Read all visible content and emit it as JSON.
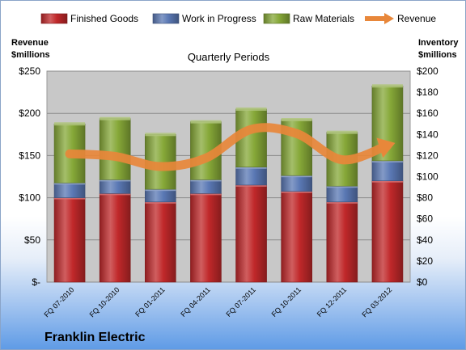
{
  "chart_data": {
    "type": "bar",
    "stacked": true,
    "title": "Quarterly Periods",
    "company": "Franklin Electric",
    "categories": [
      "FQ 07-2010",
      "FQ 10-2010",
      "FQ 01-2011",
      "FQ 04-2011",
      "FQ 07-2011",
      "FQ 10-2011",
      "FQ 12-2011",
      "FQ 03-2012"
    ],
    "y_left": {
      "label_line1": "Revenue",
      "label_line2": "$millions",
      "range": [
        0,
        250
      ],
      "ticks": [
        0,
        50,
        100,
        150,
        200,
        250
      ],
      "tick_labels": [
        "$-",
        "$50",
        "$100",
        "$150",
        "$200",
        "$250"
      ]
    },
    "y_right": {
      "label_line1": "Inventory",
      "label_line2": "$millions",
      "range": [
        0,
        200
      ],
      "ticks": [
        0,
        20,
        40,
        60,
        80,
        100,
        120,
        140,
        160,
        180,
        200
      ],
      "tick_labels": [
        "$0",
        "$20",
        "$40",
        "$60",
        "$80",
        "$100",
        "$120",
        "$140",
        "$160",
        "$180",
        "$200"
      ]
    },
    "series": [
      {
        "name": "Finished Goods",
        "axis": "right",
        "color": "#c0282a",
        "values": [
          80,
          84,
          76,
          84,
          92,
          86,
          76,
          96
        ]
      },
      {
        "name": "Work in Progress",
        "axis": "right",
        "color": "#5a78b4",
        "values": [
          14,
          13,
          12,
          13,
          17,
          15,
          15,
          19
        ]
      },
      {
        "name": "Raw Materials",
        "axis": "right",
        "color": "#86a838",
        "values": [
          56,
          58,
          52,
          55,
          55,
          53,
          51,
          71
        ]
      },
      {
        "name": "Revenue",
        "axis": "left",
        "type": "line",
        "color": "#e8873a",
        "values": [
          152,
          149,
          137,
          147,
          181,
          176,
          145,
          162
        ]
      }
    ],
    "legend_position": "top",
    "grid": true
  }
}
